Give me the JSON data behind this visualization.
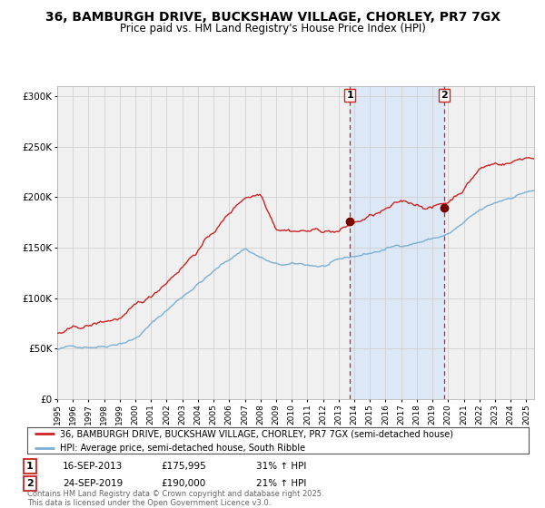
{
  "title": "36, BAMBURGH DRIVE, BUCKSHAW VILLAGE, CHORLEY, PR7 7GX",
  "subtitle": "Price paid vs. HM Land Registry's House Price Index (HPI)",
  "title_fontsize": 10,
  "subtitle_fontsize": 8.5,
  "bg_color": "#ffffff",
  "plot_bg_color": "#f0f0f0",
  "grid_color": "#d0d0d0",
  "red_line_color": "#cc2222",
  "blue_line_color": "#7bafd4",
  "highlight_bg": "#dce8f5",
  "dashed_line_color": "#cc2222",
  "marker_color": "#7a0000",
  "purchase1_year": 2013.72,
  "purchase1_price": 175995,
  "purchase2_year": 2019.73,
  "purchase2_price": 190000,
  "legend_entries": [
    "36, BAMBURGH DRIVE, BUCKSHAW VILLAGE, CHORLEY, PR7 7GX (semi-detached house)",
    "HPI: Average price, semi-detached house, South Ribble"
  ],
  "sale_rows": [
    {
      "num": "1",
      "date": "16-SEP-2013",
      "price": "£175,995",
      "hpi": "31% ↑ HPI"
    },
    {
      "num": "2",
      "date": "24-SEP-2019",
      "price": "£190,000",
      "hpi": "21% ↑ HPI"
    }
  ],
  "footer": "Contains HM Land Registry data © Crown copyright and database right 2025.\nThis data is licensed under the Open Government Licence v3.0.",
  "ylim": [
    0,
    310000
  ],
  "yticks": [
    0,
    50000,
    100000,
    150000,
    200000,
    250000,
    300000
  ],
  "ytick_labels": [
    "£0",
    "£50K",
    "£100K",
    "£150K",
    "£200K",
    "£250K",
    "£300K"
  ],
  "xstart": 1995.0,
  "xend": 2025.5
}
